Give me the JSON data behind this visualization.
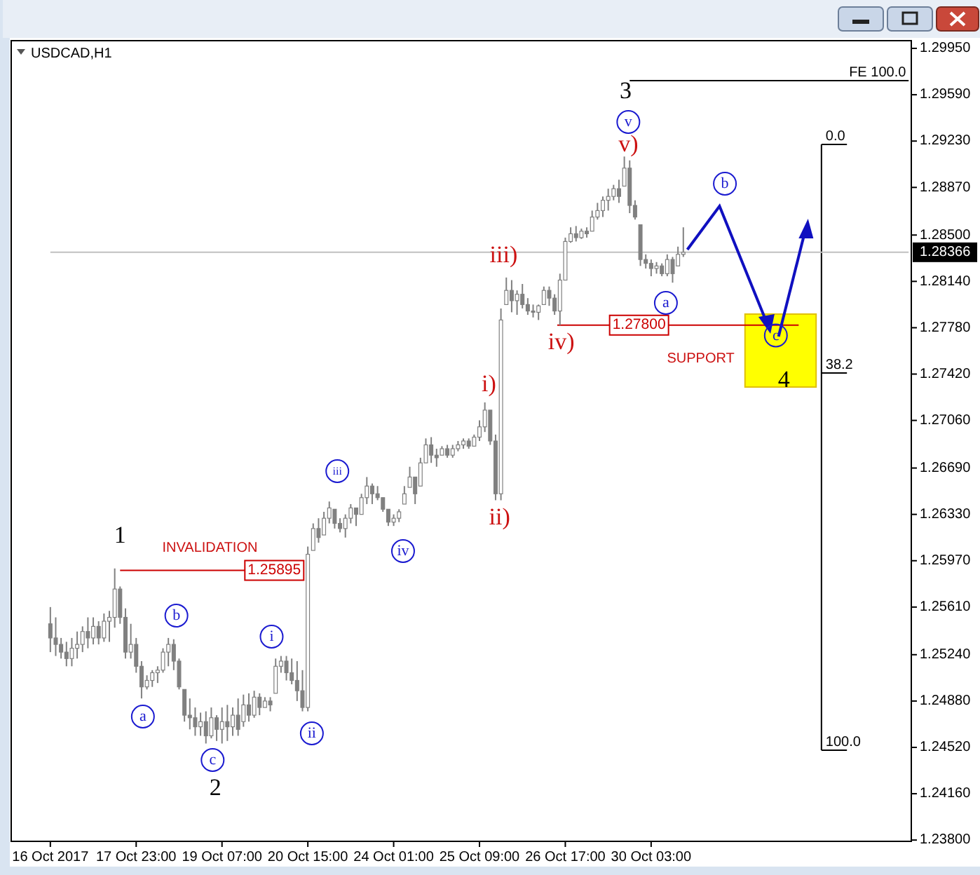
{
  "chart_data": {
    "type": "candlestick",
    "title": "USDCAD,H1",
    "color": "#808080",
    "categories": [
      "16 Oct 2017",
      null,
      null,
      null,
      null,
      null,
      null,
      null,
      null,
      null,
      null,
      null,
      null,
      null,
      null,
      null,
      "17 Oct 23:00",
      null,
      null,
      null,
      null,
      null,
      null,
      null,
      null,
      null,
      null,
      null,
      null,
      null,
      null,
      null,
      "19 Oct 07:00",
      null,
      null,
      null,
      null,
      null,
      null,
      null,
      null,
      null,
      null,
      null,
      null,
      null,
      null,
      null,
      "20 Oct 15:00",
      null,
      null,
      null,
      null,
      null,
      null,
      null,
      null,
      null,
      null,
      null,
      null,
      null,
      null,
      null,
      "24 Oct 01:00",
      null,
      null,
      null,
      null,
      null,
      null,
      null,
      null,
      null,
      null,
      null,
      null,
      null,
      null,
      null,
      "25 Oct 09:00",
      null,
      null,
      null,
      null,
      null,
      null,
      null,
      null,
      null,
      null,
      null,
      null,
      null,
      null,
      null,
      "26 Oct 17:00",
      null,
      null,
      null,
      null,
      null,
      null,
      null,
      null,
      null,
      null,
      null,
      null,
      null,
      null,
      null,
      "30 Oct 03:00",
      null,
      null,
      null,
      null,
      null,
      null,
      null,
      null,
      null,
      null,
      null,
      null,
      null,
      null,
      null,
      null,
      null,
      null,
      null,
      null,
      null,
      null,
      null,
      null,
      null,
      null,
      null,
      null,
      null,
      null,
      null,
      null,
      null,
      null,
      null,
      null,
      null,
      null,
      null,
      null,
      null,
      null,
      null,
      null,
      null,
      null,
      null,
      null
    ],
    "ohlc": [
      [
        1.2548,
        1.2561,
        1.2526,
        1.2537
      ],
      [
        1.2537,
        1.2553,
        1.2523,
        1.2532
      ],
      [
        1.2532,
        1.2537,
        1.2521,
        1.2526
      ],
      [
        1.2526,
        1.2534,
        1.2515,
        1.2521
      ],
      [
        1.2521,
        1.2537,
        1.2515,
        1.2529
      ],
      [
        1.2529,
        1.2542,
        1.2521,
        1.2532
      ],
      [
        1.2532,
        1.2546,
        1.2526,
        1.2542
      ],
      [
        1.2542,
        1.2553,
        1.2529,
        1.2537
      ],
      [
        1.2537,
        1.2553,
        1.2532,
        1.2546
      ],
      [
        1.2546,
        1.255,
        1.2532,
        1.2537
      ],
      [
        1.2537,
        1.2556,
        1.2534,
        1.255
      ],
      [
        1.255,
        1.2558,
        1.2534,
        1.2553
      ],
      [
        1.2553,
        1.2591,
        1.2545,
        1.2575
      ],
      [
        1.2575,
        1.2577,
        1.2548,
        1.2553
      ],
      [
        1.2553,
        1.256,
        1.2521,
        1.2526
      ],
      [
        1.2526,
        1.2548,
        1.2521,
        1.2532
      ],
      [
        1.2532,
        1.2537,
        1.251,
        1.2515
      ],
      [
        1.2515,
        1.2519,
        1.249,
        1.2499
      ],
      [
        1.2499,
        1.2508,
        1.2497,
        1.2504
      ],
      [
        1.2504,
        1.2512,
        1.2499,
        1.251
      ],
      [
        1.251,
        1.2515,
        1.2502,
        1.2512
      ],
      [
        1.2512,
        1.2529,
        1.251,
        1.2526
      ],
      [
        1.2526,
        1.2537,
        1.2515,
        1.2532
      ],
      [
        1.2532,
        1.2536,
        1.2512,
        1.2519
      ],
      [
        1.2519,
        1.2521,
        1.2497,
        1.2499
      ],
      [
        1.2497,
        1.2497,
        1.2472,
        1.2477
      ],
      [
        1.2477,
        1.249,
        1.2466,
        1.2475
      ],
      [
        1.2475,
        1.2483,
        1.2461,
        1.2468
      ],
      [
        1.2468,
        1.2479,
        1.2461,
        1.2472
      ],
      [
        1.2472,
        1.248,
        1.2455,
        1.2461
      ],
      [
        1.2461,
        1.2483,
        1.2459,
        1.2475
      ],
      [
        1.2475,
        1.2477,
        1.2457,
        1.2466
      ],
      [
        1.2466,
        1.2483,
        1.2455,
        1.2472
      ],
      [
        1.2472,
        1.2485,
        1.2457,
        1.2468
      ],
      [
        1.2468,
        1.2483,
        1.2461,
        1.2477
      ],
      [
        1.2477,
        1.249,
        1.2461,
        1.2466
      ],
      [
        1.2472,
        1.2493,
        1.2468,
        1.2485
      ],
      [
        1.2485,
        1.2494,
        1.2472,
        1.2477
      ],
      [
        1.2477,
        1.2496,
        1.2475,
        1.2491
      ],
      [
        1.2491,
        1.2494,
        1.2477,
        1.2483
      ],
      [
        1.2483,
        1.2491,
        1.2483,
        1.2488
      ],
      [
        1.2488,
        1.2491,
        1.248,
        1.2485
      ],
      [
        1.2494,
        1.2521,
        1.2494,
        1.2515
      ],
      [
        1.2515,
        1.2523,
        1.251,
        1.2519
      ],
      [
        1.2519,
        1.2523,
        1.2504,
        1.251
      ],
      [
        1.251,
        1.2521,
        1.2501,
        1.2504
      ],
      [
        1.2504,
        1.2519,
        1.2488,
        1.2496
      ],
      [
        1.2496,
        1.2512,
        1.248,
        1.2483
      ],
      [
        1.2483,
        1.2608,
        1.248,
        1.2602
      ],
      [
        1.2605,
        1.2626,
        1.2605,
        1.2622
      ],
      [
        1.2622,
        1.263,
        1.2611,
        1.2615
      ],
      [
        1.2617,
        1.2635,
        1.2617,
        1.263
      ],
      [
        1.263,
        1.2643,
        1.2626,
        1.2638
      ],
      [
        1.2637,
        1.2637,
        1.2622,
        1.2626
      ],
      [
        1.2626,
        1.263,
        1.2619,
        1.2622
      ],
      [
        1.2622,
        1.2633,
        1.2615,
        1.263
      ],
      [
        1.263,
        1.2641,
        1.2626,
        1.2638
      ],
      [
        1.2638,
        1.2638,
        1.2624,
        1.2633
      ],
      [
        1.2633,
        1.2649,
        1.2633,
        1.2646
      ],
      [
        1.2646,
        1.2662,
        1.2641,
        1.2655
      ],
      [
        1.2655,
        1.2657,
        1.2641,
        1.2649
      ],
      [
        1.2649,
        1.2655,
        1.2644,
        1.2646
      ],
      [
        1.2646,
        1.2646,
        1.2635,
        1.2637
      ],
      [
        1.2637,
        1.2637,
        1.2624,
        1.2627
      ],
      [
        1.2627,
        1.2633,
        1.2624,
        1.263
      ],
      [
        1.263,
        1.2637,
        1.2627,
        1.2635
      ],
      [
        1.2641,
        1.2655,
        1.2641,
        1.2649
      ],
      [
        1.2654,
        1.267,
        1.2654,
        1.2662
      ],
      [
        1.2662,
        1.2662,
        1.2641,
        1.2649
      ],
      [
        1.2655,
        1.2677,
        1.2655,
        1.2673
      ],
      [
        1.2673,
        1.2692,
        1.2673,
        1.2687
      ],
      [
        1.2687,
        1.2693,
        1.2673,
        1.2679
      ],
      [
        1.2679,
        1.2684,
        1.267,
        1.2677
      ],
      [
        1.2679,
        1.2686,
        1.2679,
        1.2684
      ],
      [
        1.2684,
        1.2687,
        1.2677,
        1.2679
      ],
      [
        1.2679,
        1.2687,
        1.2677,
        1.2684
      ],
      [
        1.2684,
        1.269,
        1.2682,
        1.2687
      ],
      [
        1.2687,
        1.2692,
        1.2684,
        1.269
      ],
      [
        1.269,
        1.2692,
        1.2684,
        1.2686
      ],
      [
        1.2686,
        1.2695,
        1.2686,
        1.2693
      ],
      [
        1.2693,
        1.2706,
        1.269,
        1.2701
      ],
      [
        1.2701,
        1.272,
        1.2697,
        1.2714
      ],
      [
        1.2714,
        1.2714,
        1.2687,
        1.269
      ],
      [
        1.269,
        1.2695,
        1.2644,
        1.2649
      ],
      [
        1.2649,
        1.2793,
        1.2644,
        1.2784
      ],
      [
        1.2796,
        1.2817,
        1.2796,
        1.2807
      ],
      [
        1.2807,
        1.2815,
        1.279,
        1.2799
      ],
      [
        1.2799,
        1.2807,
        1.2788,
        1.2804
      ],
      [
        1.2804,
        1.2812,
        1.2793,
        1.2796
      ],
      [
        1.2796,
        1.2801,
        1.2788,
        1.2791
      ],
      [
        1.2791,
        1.2796,
        1.2786,
        1.279
      ],
      [
        1.279,
        1.2796,
        1.2784,
        1.2795
      ],
      [
        1.2796,
        1.281,
        1.2796,
        1.2807
      ],
      [
        1.2807,
        1.281,
        1.2795,
        1.2801
      ],
      [
        1.2801,
        1.2804,
        1.2788,
        1.2791
      ],
      [
        1.2791,
        1.282,
        1.278,
        1.2815
      ],
      [
        1.2815,
        1.2848,
        1.2815,
        1.2845
      ],
      [
        1.2845,
        1.2856,
        1.2844,
        1.2851
      ],
      [
        1.2851,
        1.2857,
        1.2845,
        1.2848
      ],
      [
        1.2848,
        1.2855,
        1.2847,
        1.2853
      ],
      [
        1.2853,
        1.2856,
        1.2848,
        1.2851
      ],
      [
        1.2853,
        1.2869,
        1.2853,
        1.2864
      ],
      [
        1.2864,
        1.2875,
        1.2862,
        1.2869
      ],
      [
        1.2869,
        1.288,
        1.2864,
        1.2877
      ],
      [
        1.2877,
        1.2886,
        1.2869,
        1.288
      ],
      [
        1.288,
        1.2889,
        1.2877,
        1.2886
      ],
      [
        1.2886,
        1.2893,
        1.2875,
        1.288
      ],
      [
        1.2888,
        1.2911,
        1.2888,
        1.2902
      ],
      [
        1.2902,
        1.2908,
        1.2867,
        1.2873
      ],
      [
        1.2873,
        1.2877,
        1.2862,
        1.2864
      ],
      [
        1.2858,
        1.2858,
        1.2826,
        1.2831
      ],
      [
        1.2831,
        1.2835,
        1.2824,
        1.2828
      ],
      [
        1.2828,
        1.2831,
        1.2818,
        1.2824
      ],
      [
        1.2824,
        1.2829,
        1.282,
        1.2826
      ],
      [
        1.2826,
        1.2828,
        1.2818,
        1.282
      ],
      [
        1.282,
        1.2835,
        1.2818,
        1.2831
      ],
      [
        1.2831,
        1.2833,
        1.2813,
        1.282
      ],
      [
        1.2826,
        1.2841,
        1.2826,
        1.2835
      ],
      [
        1.2835,
        1.2856,
        1.2833,
        1.28366
      ],
      null,
      null,
      null,
      null,
      null,
      null,
      null,
      null,
      null,
      null,
      null,
      null,
      null,
      null,
      null,
      null,
      null,
      null,
      null,
      null,
      null,
      null,
      null,
      null,
      null,
      null,
      null,
      null,
      null,
      null,
      null,
      null,
      null,
      null,
      null,
      null,
      null,
      null,
      null,
      null,
      null,
      null
    ],
    "ylim": [
      1.2379,
      1.3001
    ],
    "yticks": [
      {
        "value": 1.2995,
        "label": "1.29950"
      },
      {
        "value": 1.2959,
        "label": "1.29590"
      },
      {
        "value": 1.2923,
        "label": "1.29230"
      },
      {
        "value": 1.2887,
        "label": "1.28870"
      },
      {
        "value": 1.285,
        "label": "1.28500"
      },
      {
        "value": 1.2814,
        "label": "1.28140"
      },
      {
        "value": 1.2778,
        "label": "1.27780"
      },
      {
        "value": 1.2742,
        "label": "1.27420"
      },
      {
        "value": 1.2706,
        "label": "1.27060"
      },
      {
        "value": 1.2669,
        "label": "1.26690"
      },
      {
        "value": 1.2633,
        "label": "1.26330"
      },
      {
        "value": 1.2597,
        "label": "1.25970"
      },
      {
        "value": 1.2561,
        "label": "1.25610"
      },
      {
        "value": 1.2524,
        "label": "1.25240"
      },
      {
        "value": 1.2488,
        "label": "1.24880"
      },
      {
        "value": 1.2452,
        "label": "1.24520"
      },
      {
        "value": 1.2416,
        "label": "1.24160"
      },
      {
        "value": 1.238,
        "label": "1.23800"
      }
    ],
    "ref_lines": [
      {
        "axis": "y",
        "value": 1.25895,
        "label": "1.25895",
        "color": "#cc0000"
      },
      {
        "axis": "y",
        "value": 1.278,
        "label": "1.27800",
        "color": "#cc0000"
      },
      {
        "axis": "y",
        "value": 1.28366,
        "label": "1.28366",
        "color": "#c0c0c0"
      },
      {
        "axis": "y",
        "value": 1.297,
        "label": "FE 100.0",
        "color": "#000000"
      }
    ],
    "annotations": [
      "1",
      "2",
      "3",
      "4",
      "a",
      "b",
      "c",
      "i",
      "ii",
      "iii",
      "iv",
      "v",
      "i)",
      "ii)",
      "iii)",
      "iv)",
      "v)",
      "a",
      "b",
      {
        "text": "c",
        "y": 1.2772
      },
      "INVALIDATION",
      "SUPPORT",
      "0.0",
      "38.2",
      "100.0"
    ]
  }
}
